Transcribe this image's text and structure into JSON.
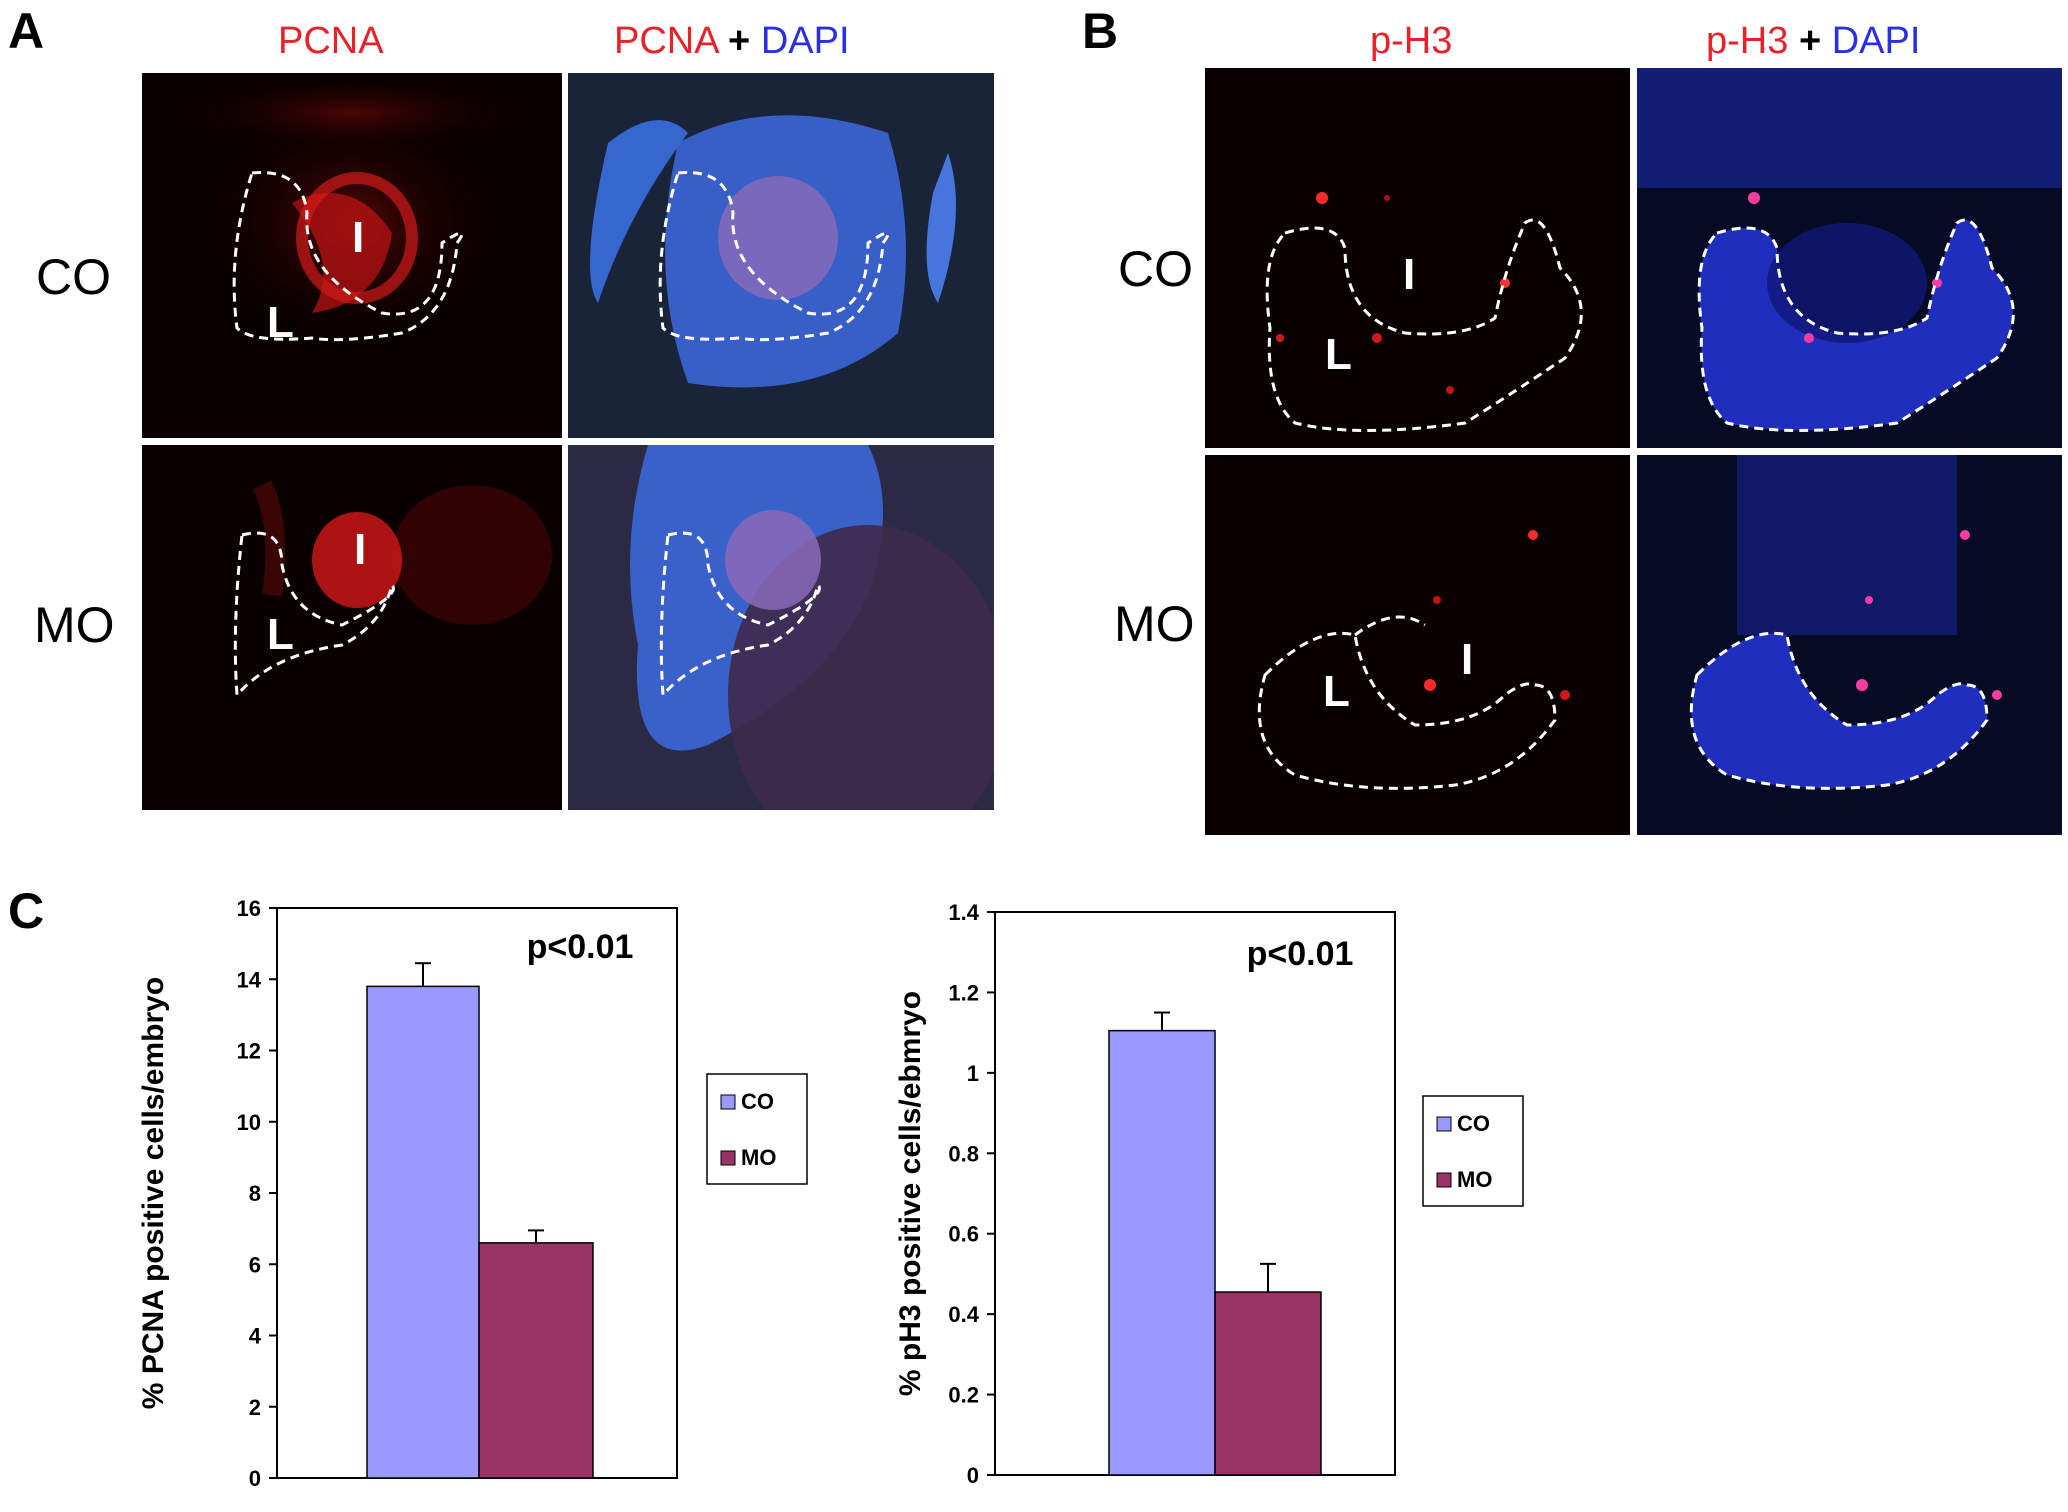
{
  "panel_a": {
    "letter": "A",
    "header_left": "PCNA",
    "header_right": {
      "part1": "PCNA",
      "plus": "+",
      "part2": "DAPI"
    },
    "rows": [
      {
        "label": "CO"
      },
      {
        "label": "MO"
      }
    ],
    "region_l": "L",
    "region_i": "I"
  },
  "panel_b": {
    "letter": "B",
    "header_left": "p-H3",
    "header_right": {
      "part1": "p-H3",
      "plus": "+",
      "part2": "DAPI"
    },
    "rows": [
      {
        "label": "CO"
      },
      {
        "label": "MO"
      }
    ],
    "region_l": "L",
    "region_i": "I"
  },
  "panel_c": {
    "letter": "C"
  },
  "chart_data": [
    {
      "type": "bar",
      "categories": [
        "CO",
        "MO"
      ],
      "values": [
        13.8,
        6.6
      ],
      "errors": [
        0.65,
        0.35
      ],
      "ylabel": "% PCNA positive cells/embryo",
      "ylim": [
        0,
        16
      ],
      "yticks": [
        "0",
        "2",
        "4",
        "6",
        "8",
        "10",
        "12",
        "14",
        "16"
      ],
      "annotation": "p<0.01",
      "legend": [
        "CO",
        "MO"
      ],
      "legend_position": "right",
      "colors": [
        "#9999ff",
        "#993366"
      ],
      "grid": false
    },
    {
      "type": "bar",
      "categories": [
        "CO",
        "MO"
      ],
      "values": [
        1.105,
        0.455
      ],
      "errors": [
        0.045,
        0.07
      ],
      "ylabel": "% pH3 positive cells/ebmryo",
      "ylim": [
        0,
        1.4
      ],
      "yticks": [
        "0",
        "0.2",
        "0.4",
        "0.6",
        "0.8",
        "1",
        "1.2",
        "1.4"
      ],
      "annotation": "p<0.01",
      "legend": [
        "CO",
        "MO"
      ],
      "legend_position": "right",
      "colors": [
        "#9999ff",
        "#993366"
      ],
      "grid": false
    }
  ]
}
